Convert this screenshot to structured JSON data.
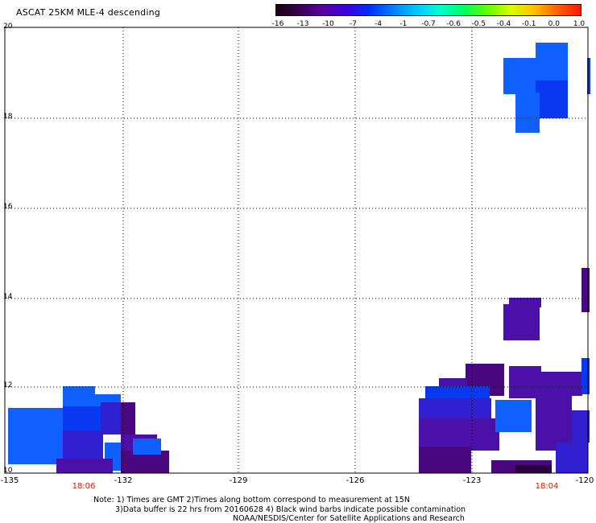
{
  "title": "ASCAT 25KM MLE-4 descending",
  "colorbar": {
    "labels": [
      "-16",
      "-13",
      "-10",
      "-7",
      "-4",
      "-1",
      "-0.7",
      "-0.6",
      "-0.5",
      "-0.4",
      "-0.1",
      "0.0",
      "1.0"
    ],
    "colors": [
      "#1a0010",
      "#3b0050",
      "#5a00a0",
      "#3a00e0",
      "#0030ff",
      "#0080ff",
      "#00c8ff",
      "#00ffd0",
      "#00ff60",
      "#60ff00",
      "#d8ff00",
      "#ffc000",
      "#ff6000",
      "#ff1800"
    ]
  },
  "axes": {
    "x_ticks": [
      "-135",
      "-132",
      "-129",
      "-126",
      "-123",
      "-120"
    ],
    "y_ticks": [
      "20",
      "18",
      "16",
      "14",
      "12",
      "10"
    ]
  },
  "times": [
    "18:06",
    "18:04"
  ],
  "notes": {
    "line1": "Note: 1) Times are GMT 2)Times along bottom correspond to measurement at 15N",
    "line2": "3)Data buffer is 22 hrs from 20160628 4) Black wind barbs indicate possible contamination",
    "line3": "NOAA/NESDIS/Center for Satellite Applications and Research"
  },
  "palette": {
    "lightblue": "#1060ff",
    "blue": "#0a38f0",
    "indigo": "#3020d0",
    "purple": "#4a10a8",
    "darkpurple": "#4a0880",
    "deep": "#2a0040"
  }
}
